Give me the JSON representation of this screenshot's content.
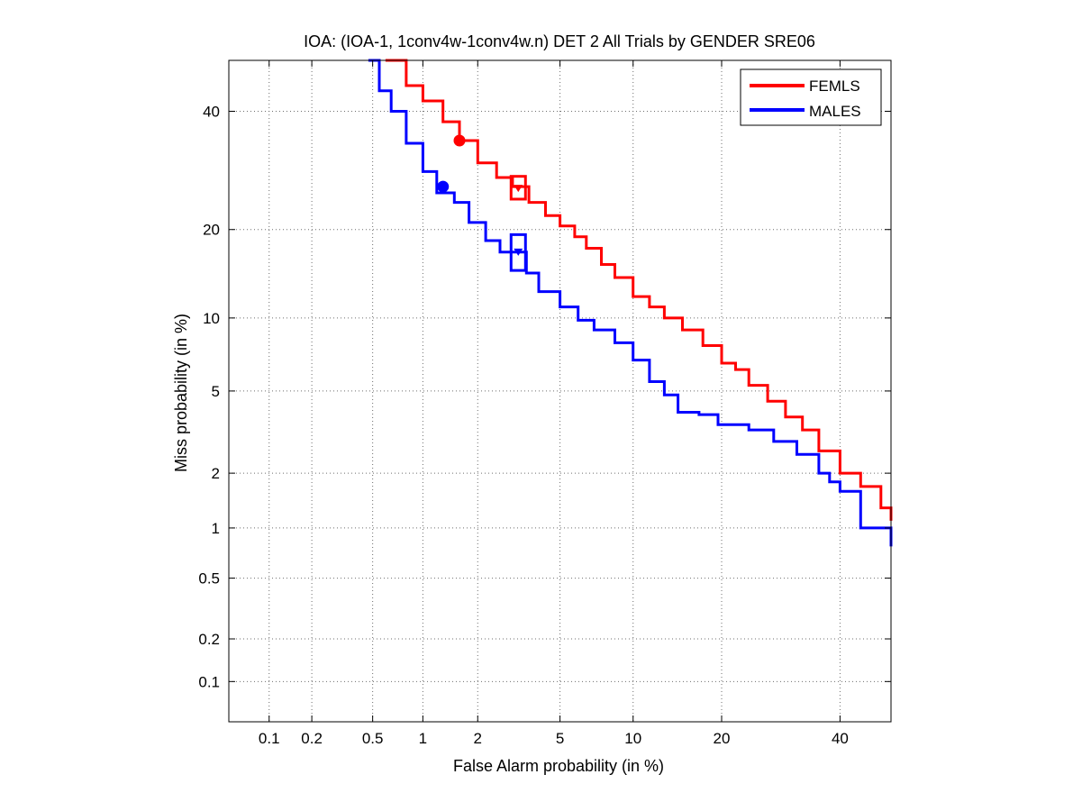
{
  "chart_data": {
    "type": "line",
    "title": "IOA: (IOA-1, 1conv4w-1conv4w.n) DET 2 All Trials by GENDER SRE06",
    "xlabel": "False Alarm probability (in %)",
    "ylabel": "Miss probability (in %)",
    "x_scale": "normal-deviate (probit)",
    "y_scale": "normal-deviate (probit)",
    "xlim": [
      0.05,
      50
    ],
    "ylim": [
      0.05,
      50
    ],
    "x_ticks": [
      0.1,
      0.2,
      0.5,
      1,
      2,
      5,
      10,
      20,
      40
    ],
    "x_tick_labels": [
      "0.1",
      "0.2",
      "0.5",
      "1",
      "2",
      "5",
      "10",
      "20",
      "40"
    ],
    "y_ticks": [
      0.1,
      0.2,
      0.5,
      1,
      2,
      5,
      10,
      20,
      40
    ],
    "y_tick_labels": [
      "0.1",
      "0.2",
      "0.5",
      "1",
      "2",
      "5",
      "10",
      "20",
      "40"
    ],
    "grid": true,
    "legend_position": "top-right",
    "series": [
      {
        "name": "FEMLS",
        "color": "#ff0000",
        "x": [
          0.6,
          0.8,
          1.0,
          1.3,
          1.6,
          2.0,
          2.5,
          3.0,
          3.6,
          4.3,
          5.0,
          5.8,
          6.5,
          7.5,
          8.5,
          10,
          11.5,
          13,
          15,
          17.5,
          20,
          22,
          24,
          27,
          30,
          33,
          36,
          40,
          44,
          48,
          50
        ],
        "y": [
          50,
          45,
          42,
          38,
          34.5,
          30.5,
          28,
          26.5,
          24,
          22,
          20.5,
          19,
          17.5,
          15.5,
          14,
          12,
          11,
          10,
          9,
          7.8,
          6.6,
          6.2,
          5.3,
          4.5,
          3.8,
          3.3,
          2.6,
          2.0,
          1.7,
          1.3,
          1.1
        ]
      },
      {
        "name": "MALES",
        "color": "#0000ff",
        "x": [
          0.47,
          0.55,
          0.65,
          0.8,
          1.0,
          1.2,
          1.5,
          1.8,
          2.2,
          2.6,
          3.0,
          3.5,
          4.0,
          5.0,
          6.0,
          7.0,
          8.5,
          10,
          11.5,
          13,
          14.5,
          17,
          19.5,
          24,
          28,
          32,
          36,
          38,
          40,
          44,
          46,
          50
        ],
        "y": [
          50,
          44,
          40,
          34,
          29,
          25.5,
          24,
          21,
          18.5,
          17,
          17,
          14.5,
          12.5,
          11,
          9.8,
          9.0,
          8.0,
          6.8,
          5.5,
          4.8,
          4.0,
          3.9,
          3.5,
          3.3,
          2.9,
          2.5,
          2.0,
          1.8,
          1.6,
          1.0,
          1.0,
          0.78
        ]
      }
    ],
    "markers": [
      {
        "series": "FEMLS",
        "shape": "circle",
        "x": 1.6,
        "y": 34.5
      },
      {
        "series": "FEMLS",
        "shape": "box",
        "x": 3.2,
        "y": 26.2,
        "y_low": 24.5,
        "y_high": 28.2
      },
      {
        "series": "MALES",
        "shape": "circle",
        "x": 1.3,
        "y": 26.5
      },
      {
        "series": "MALES",
        "shape": "box",
        "x": 3.2,
        "y": 17.0,
        "y_low": 14.8,
        "y_high": 19.3
      }
    ]
  }
}
